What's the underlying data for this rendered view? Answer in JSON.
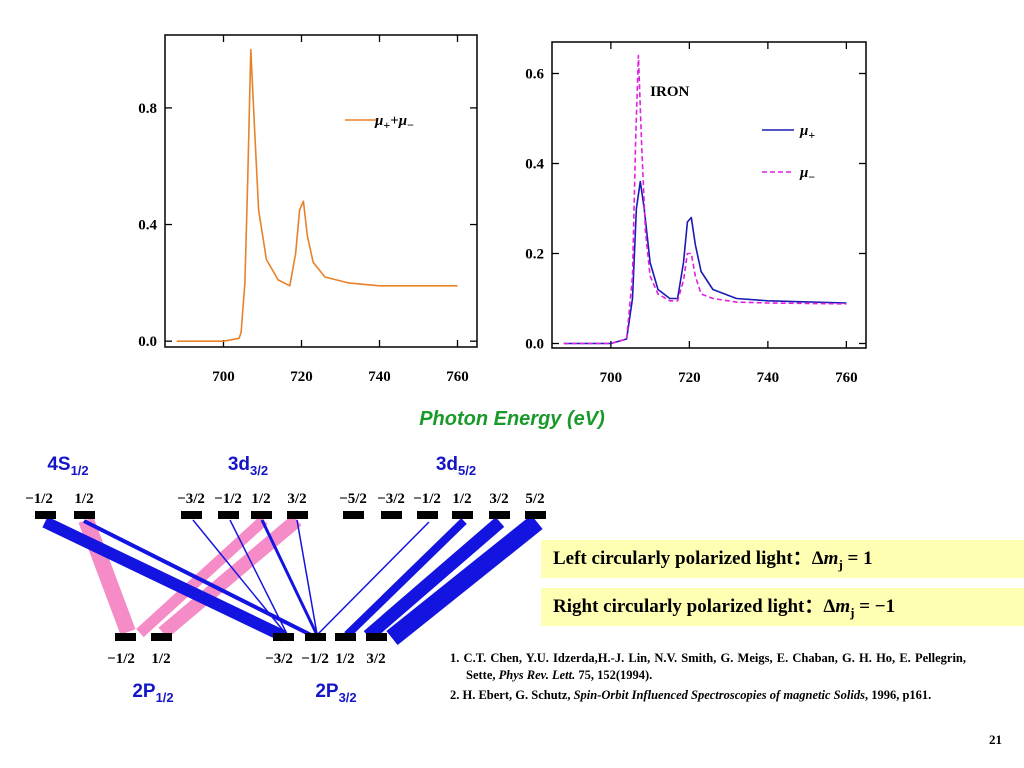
{
  "chart_data": [
    {
      "type": "line",
      "xlim": [
        685,
        765
      ],
      "ylim": [
        -0.02,
        1.05
      ],
      "xticks": [
        700,
        720,
        740,
        760
      ],
      "yticks": [
        0.0,
        0.4,
        0.8
      ],
      "xtick_labels": [
        "700",
        "720",
        "740",
        "760"
      ],
      "ytick_labels": [
        "0.0",
        "0.4",
        "0.8"
      ],
      "legend_position": "top-right",
      "series": [
        {
          "name": "μ₊+μ₋",
          "color": "#e8822a",
          "style": "solid",
          "x": [
            688,
            700,
            704,
            704.5,
            705.5,
            706.2,
            707,
            708,
            709,
            711,
            714,
            717,
            718.5,
            719.5,
            720.5,
            721.5,
            723,
            726,
            732,
            740,
            760
          ],
          "y": [
            0.0,
            0.0,
            0.01,
            0.03,
            0.2,
            0.55,
            1.0,
            0.72,
            0.45,
            0.28,
            0.21,
            0.19,
            0.3,
            0.45,
            0.48,
            0.36,
            0.27,
            0.22,
            0.2,
            0.19,
            0.19
          ]
        }
      ]
    },
    {
      "type": "line",
      "title": "IRON",
      "xlim": [
        685,
        765
      ],
      "ylim": [
        -0.01,
        0.67
      ],
      "xticks": [
        700,
        720,
        740,
        760
      ],
      "yticks": [
        0.0,
        0.2,
        0.4,
        0.6
      ],
      "xtick_labels": [
        "700",
        "720",
        "740",
        "760"
      ],
      "ytick_labels": [
        "0.0",
        "0.2",
        "0.4",
        "0.6"
      ],
      "legend_position": "top-right",
      "series": [
        {
          "name": "μ₊",
          "color": "#1a1ab4",
          "style": "solid",
          "x": [
            688,
            700,
            704,
            705.5,
            706.5,
            707.5,
            708.5,
            710,
            712,
            715,
            717,
            718.5,
            719.5,
            720.5,
            721.5,
            723,
            726,
            732,
            740,
            760
          ],
          "y": [
            0.0,
            0.0,
            0.01,
            0.1,
            0.3,
            0.36,
            0.3,
            0.18,
            0.12,
            0.1,
            0.1,
            0.18,
            0.27,
            0.28,
            0.22,
            0.16,
            0.12,
            0.1,
            0.095,
            0.09
          ]
        },
        {
          "name": "μ₋",
          "color": "#e020e0",
          "style": "dashed",
          "x": [
            688,
            700,
            704,
            705.5,
            706.3,
            707,
            707.8,
            708.8,
            710,
            712,
            715,
            717,
            718.5,
            719.5,
            720.5,
            721.5,
            723,
            726,
            732,
            740,
            760
          ],
          "y": [
            0.0,
            0.0,
            0.01,
            0.15,
            0.45,
            0.64,
            0.45,
            0.25,
            0.15,
            0.11,
            0.095,
            0.095,
            0.14,
            0.2,
            0.2,
            0.15,
            0.11,
            0.1,
            0.092,
            0.09,
            0.088
          ]
        }
      ]
    }
  ],
  "xlabel": "Photon Energy  (eV)",
  "diagram": {
    "upper_groups": [
      {
        "main": "4S",
        "sub": "1/2",
        "mj": [
          "−1/2",
          "1/2"
        ]
      },
      {
        "main": "3d",
        "sub": "3/2",
        "mj": [
          "−3/2",
          "−1/2",
          "1/2",
          "3/2"
        ]
      },
      {
        "main": "3d",
        "sub": "5/2",
        "mj": [
          "−5/2",
          "−3/2",
          "−1/2",
          "1/2",
          "3/2",
          "5/2"
        ]
      }
    ],
    "lower_groups": [
      {
        "main": "2P",
        "sub": "1/2",
        "mj": [
          "−1/2",
          "1/2"
        ]
      },
      {
        "main": "2P",
        "sub": "3/2",
        "mj": [
          "−3/2",
          "−1/2",
          "1/2",
          "3/2"
        ]
      }
    ],
    "colors": {
      "blue": "#1414e0",
      "pink": "#f58cc8"
    }
  },
  "polarization": {
    "left": {
      "text": "Left circularly polarized light：",
      "delta": "Δ",
      "m": "m",
      "sub": "j",
      "rel": " = 1"
    },
    "right": {
      "text": "Right circularly polarized light：",
      "delta": "Δ",
      "m": "m",
      "sub": "j",
      "rel": " = −1"
    }
  },
  "references": [
    {
      "pre": "1. C.T. Chen, Y.U. Idzerda,H.-J. Lin, N.V. Smith, G. Meigs, E. Chaban, G. H. Ho, E. Pellegrin, Sette, ",
      "italic": "Phys Rev. Lett.",
      "post": " 75, 152(1994)."
    },
    {
      "pre": "2. H. Ebert, G. Schutz, ",
      "italic": "Spin-Orbit Influenced Spectroscopies of magnetic Solids",
      "post": ", 1996, p161."
    }
  ],
  "page_number": "21"
}
